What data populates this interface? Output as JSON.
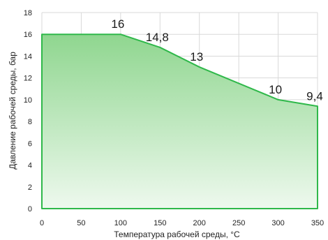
{
  "chart_data": {
    "type": "area",
    "title": "",
    "xlabel": "Температура рабочей среды, °С",
    "ylabel": "Давление рабочей среды, бар",
    "xlim": [
      0,
      350
    ],
    "ylim": [
      0,
      18
    ],
    "xticks": [
      0,
      50,
      100,
      150,
      200,
      250,
      300,
      350
    ],
    "yticks": [
      0,
      2,
      4,
      6,
      8,
      10,
      12,
      14,
      16,
      18
    ],
    "grid": true,
    "legend": "none",
    "series": [
      {
        "x": [
          0,
          100,
          150,
          200,
          300,
          350
        ],
        "y": [
          16,
          16,
          14.8,
          13,
          10,
          9.4
        ]
      }
    ],
    "data_labels": [
      {
        "x": 100,
        "y": 16,
        "text": "16"
      },
      {
        "x": 150,
        "y": 14.8,
        "text": "14,8"
      },
      {
        "x": 200,
        "y": 13,
        "text": "13"
      },
      {
        "x": 300,
        "y": 10,
        "text": "10"
      },
      {
        "x": 350,
        "y": 9.4,
        "text": "9,4"
      }
    ],
    "colors": {
      "fill_top": "#8fd68f",
      "fill_bottom": "#eef9ee",
      "line": "#2fb84a",
      "grid": "#d9d9d9"
    }
  }
}
